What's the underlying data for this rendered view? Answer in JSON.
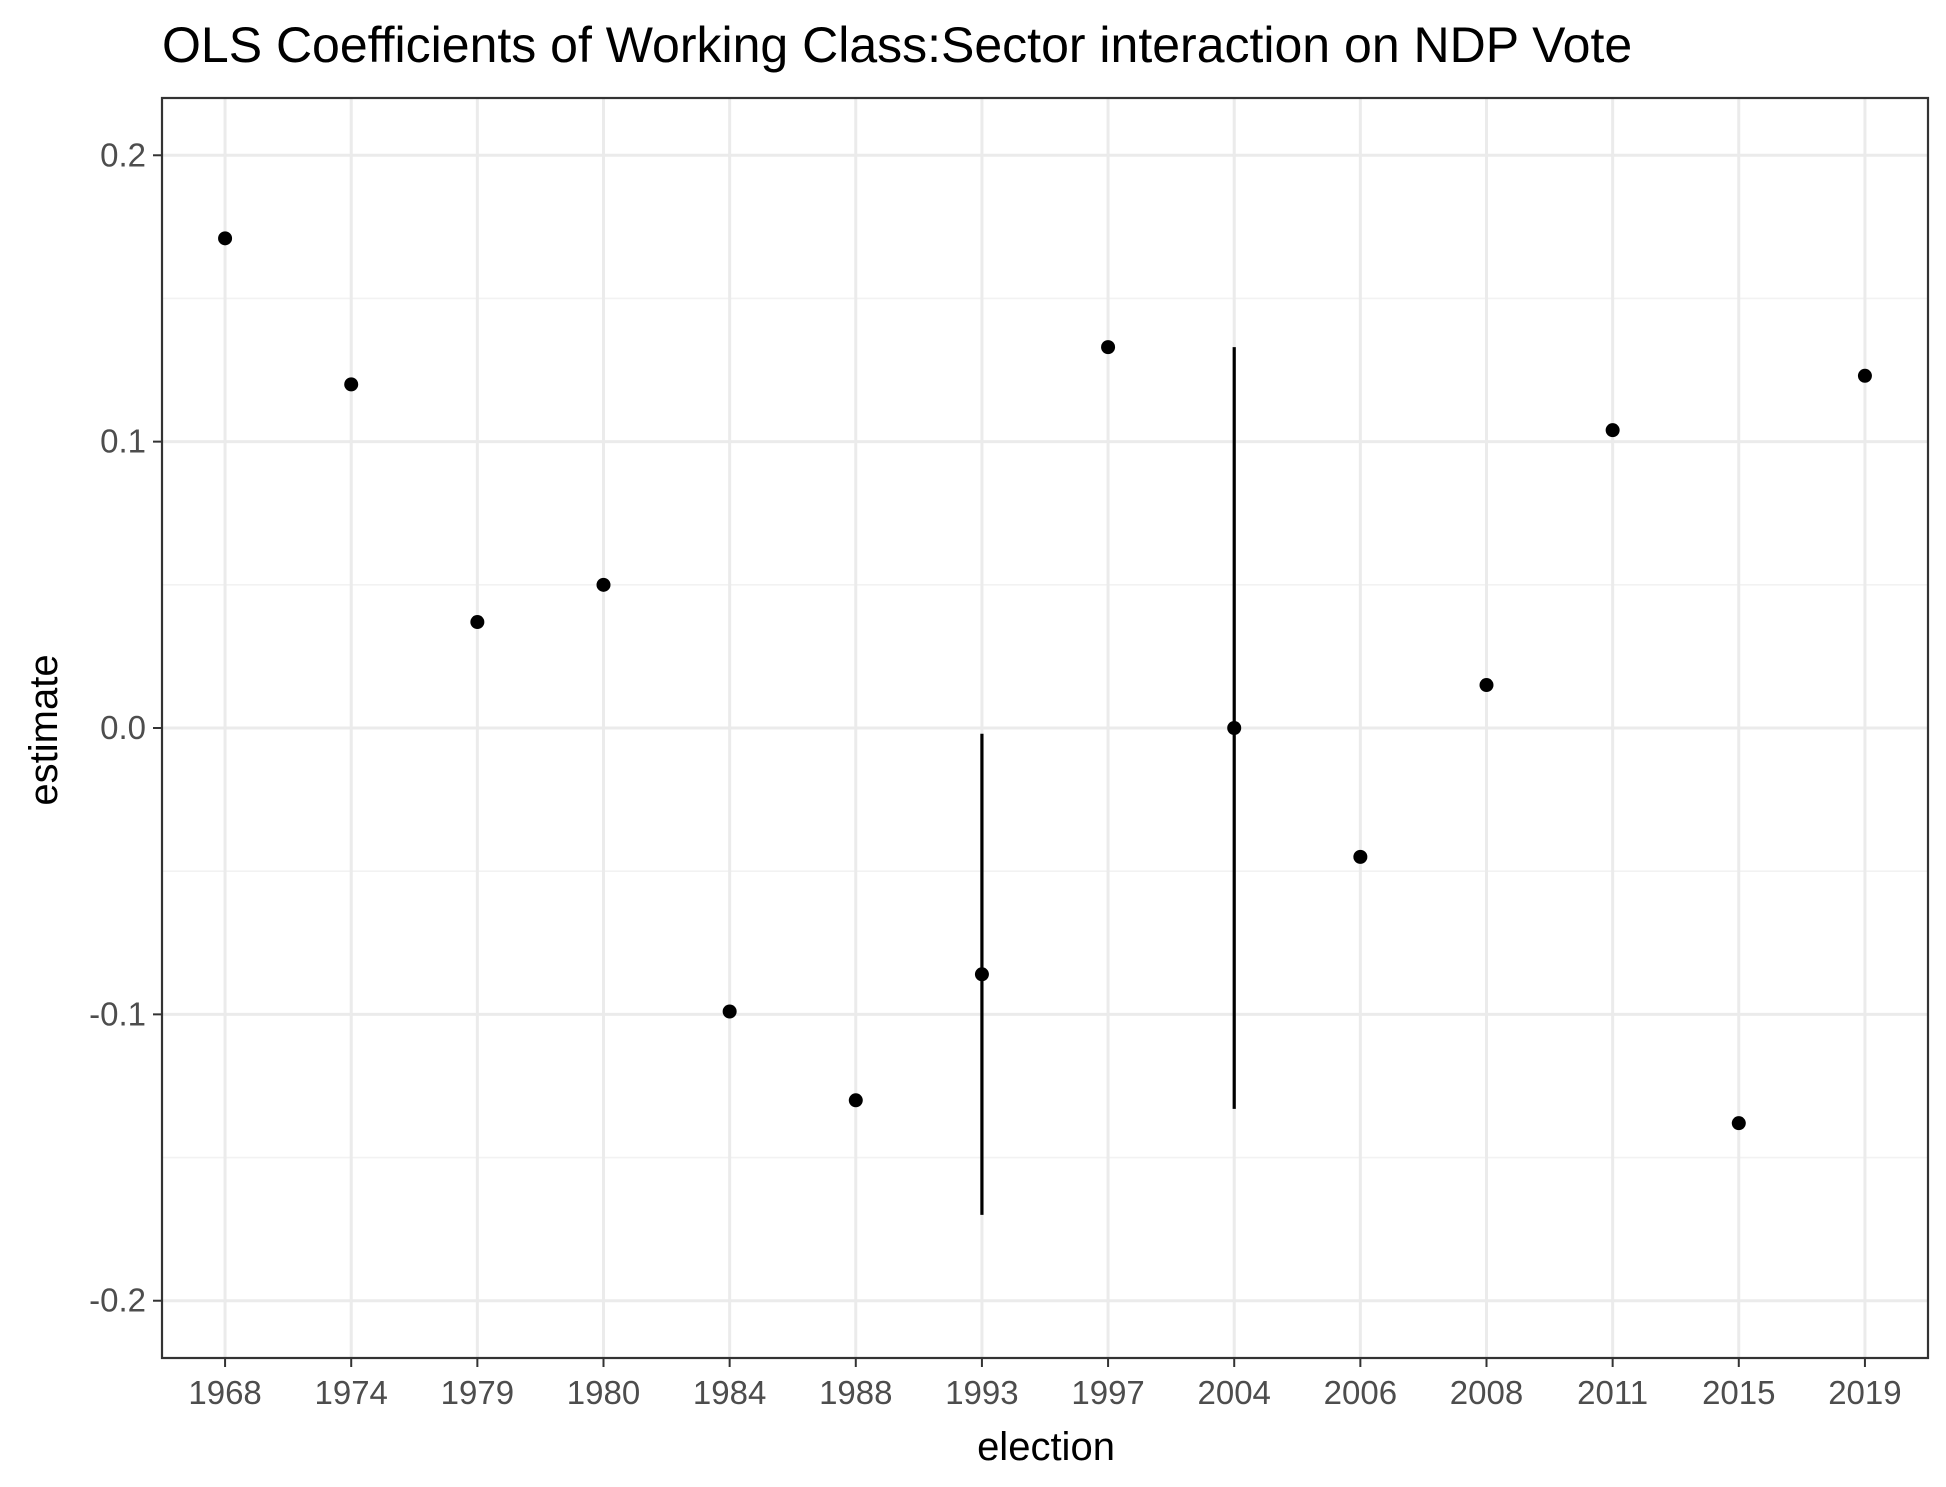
{
  "chart_data": {
    "type": "scatter",
    "title": "OLS Coefficients of Working Class:Sector interaction on NDP Vote",
    "xlabel": "election",
    "ylabel": "estimate",
    "categories": [
      "1968",
      "1974",
      "1979",
      "1980",
      "1984",
      "1988",
      "1993",
      "1997",
      "2004",
      "2006",
      "2008",
      "2011",
      "2015",
      "2019"
    ],
    "values": [
      0.171,
      0.12,
      0.037,
      0.05,
      -0.099,
      -0.13,
      -0.086,
      0.133,
      0.0,
      -0.045,
      0.015,
      0.104,
      -0.138,
      0.123
    ],
    "errorbars": [
      {
        "category": "1993",
        "low": -0.17,
        "high": -0.002
      },
      {
        "category": "2004",
        "low": -0.133,
        "high": 0.133
      }
    ],
    "ylim": [
      -0.22,
      0.22
    ],
    "yticks": [
      -0.2,
      -0.1,
      0.0,
      0.1,
      0.2
    ],
    "ytick_labels": [
      "-0.2",
      "-0.1",
      "0.0",
      "0.1",
      "0.2"
    ],
    "grid": true,
    "legend": "none",
    "colors": {
      "points": "#000000",
      "grid_major": "#ebebeb",
      "grid_minor": "#f2f2f2",
      "panel_border": "#333333",
      "tick_text": "#4d4d4d"
    }
  }
}
